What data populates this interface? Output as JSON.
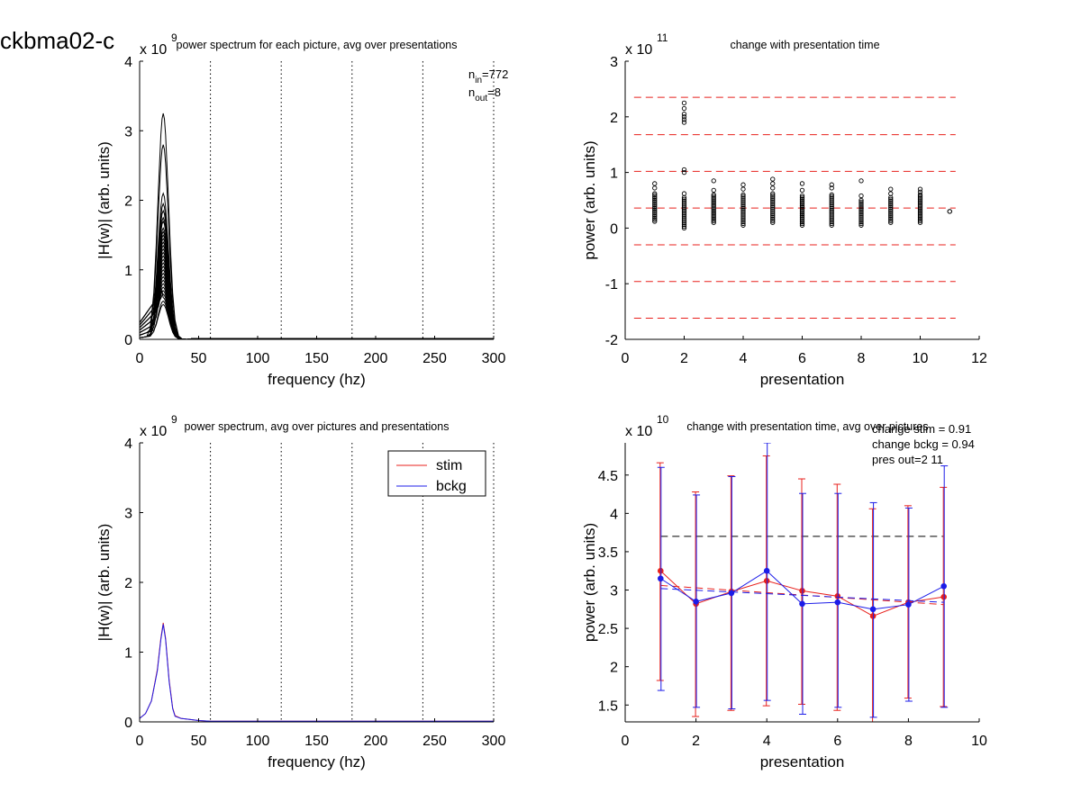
{
  "figure": {
    "title": "ckbma02-c"
  },
  "chart_data": [
    {
      "id": "tl",
      "type": "line",
      "title": "power spectrum for each picture, avg over presentations",
      "xlabel": "frequency (hz)",
      "ylabel": "|H(w)| (arb. units)",
      "y_exponent": "x 10",
      "y_exponent_power": "9",
      "xlim": [
        0,
        300
      ],
      "ylim": [
        0,
        4
      ],
      "xticks": [
        0,
        50,
        100,
        150,
        200,
        250,
        300
      ],
      "yticks": [
        0,
        1,
        2,
        3,
        4
      ],
      "vlines": [
        60,
        120,
        180,
        240,
        300
      ],
      "annotation": {
        "n_in_label": "n",
        "n_in_sub": "in",
        "n_in_value": "=772",
        "n_out_label": "n",
        "n_out_sub": "out",
        "n_out_value": "=8"
      },
      "series_color": "#000000",
      "series_peaks": [
        3.25,
        2.8,
        2.1,
        1.95,
        1.85,
        1.75,
        1.7,
        1.6,
        1.55,
        1.5,
        1.45,
        1.4,
        1.35,
        1.3,
        1.25,
        1.2,
        1.15,
        1.1,
        1.05,
        1.0,
        0.95,
        0.9,
        0.85,
        0.8,
        0.75,
        0.7,
        0.65,
        0.6,
        0.55,
        0.5
      ],
      "peak_freq": 20
    },
    {
      "id": "tr",
      "type": "scatter",
      "title": "change with presentation time",
      "xlabel": "presentation",
      "ylabel": "power (arb. units)",
      "y_exponent": "x 10",
      "y_exponent_power": "11",
      "xlim": [
        0,
        12
      ],
      "ylim": [
        -2,
        3
      ],
      "xticks": [
        0,
        2,
        4,
        6,
        8,
        10,
        12
      ],
      "yticks": [
        -2,
        -1,
        0,
        1,
        2,
        3
      ],
      "hlines": [
        2.35,
        1.68,
        1.02,
        0.36,
        -0.3,
        -0.96,
        -1.62
      ],
      "hline_color": "#e8201c",
      "points": [
        {
          "x": 1,
          "min": 0.12,
          "max": 0.62,
          "extras": [
            0.72,
            0.8
          ]
        },
        {
          "x": 2,
          "min": 0.0,
          "max": 0.55,
          "extras": [
            0.62,
            1.0,
            1.05,
            1.9,
            1.95,
            2.0,
            2.05,
            2.15,
            2.25
          ]
        },
        {
          "x": 3,
          "min": 0.1,
          "max": 0.6,
          "extras": [
            0.68,
            0.85
          ]
        },
        {
          "x": 4,
          "min": 0.05,
          "max": 0.6,
          "extras": [
            0.7,
            0.78
          ]
        },
        {
          "x": 5,
          "min": 0.1,
          "max": 0.62,
          "extras": [
            0.72,
            0.8,
            0.88
          ]
        },
        {
          "x": 6,
          "min": 0.05,
          "max": 0.58,
          "extras": [
            0.68,
            0.8
          ]
        },
        {
          "x": 7,
          "min": 0.05,
          "max": 0.6,
          "extras": [
            0.72,
            0.78
          ]
        },
        {
          "x": 8,
          "min": 0.05,
          "max": 0.5,
          "extras": [
            0.58,
            0.85
          ]
        },
        {
          "x": 9,
          "min": 0.1,
          "max": 0.55,
          "extras": [
            0.62,
            0.7
          ]
        },
        {
          "x": 10,
          "min": 0.1,
          "max": 0.6,
          "extras": [
            0.65,
            0.7
          ]
        },
        {
          "x": 11,
          "min": 0.3,
          "max": 0.3,
          "extras": []
        }
      ]
    },
    {
      "id": "bl",
      "type": "line",
      "title": "power spectrum, avg over pictures and presentations",
      "xlabel": "frequency (hz)",
      "ylabel": "|H(w)| (arb. units)",
      "y_exponent": "x 10",
      "y_exponent_power": "9",
      "xlim": [
        0,
        300
      ],
      "ylim": [
        0,
        4
      ],
      "xticks": [
        0,
        50,
        100,
        150,
        200,
        250,
        300
      ],
      "yticks": [
        0,
        1,
        2,
        3,
        4
      ],
      "vlines": [
        60,
        120,
        180,
        240,
        300
      ],
      "legend_position": "top-right",
      "series": [
        {
          "name": "stim",
          "color": "#e8201c",
          "x": [
            0,
            5,
            10,
            15,
            18,
            20,
            22,
            25,
            28,
            30,
            35,
            40,
            50,
            60,
            100,
            200,
            300
          ],
          "y": [
            0.05,
            0.12,
            0.3,
            0.75,
            1.2,
            1.42,
            1.2,
            0.6,
            0.2,
            0.09,
            0.05,
            0.04,
            0.02,
            0.01,
            0.01,
            0.01,
            0.01
          ]
        },
        {
          "name": "bckg",
          "color": "#1c1ce8",
          "x": [
            0,
            5,
            10,
            15,
            18,
            20,
            22,
            25,
            28,
            30,
            35,
            40,
            50,
            60,
            100,
            200,
            300
          ],
          "y": [
            0.05,
            0.12,
            0.3,
            0.73,
            1.18,
            1.4,
            1.18,
            0.58,
            0.19,
            0.08,
            0.05,
            0.04,
            0.02,
            0.01,
            0.01,
            0.01,
            0.01
          ]
        }
      ]
    },
    {
      "id": "br",
      "type": "line",
      "title": "change with presentation time, avg over pictures",
      "xlabel": "presentation",
      "ylabel": "power (arb. units)",
      "y_exponent": "x 10",
      "y_exponent_power": "10",
      "xlim": [
        0,
        10
      ],
      "ylim": [
        1.28,
        4.92
      ],
      "xticks": [
        0,
        2,
        4,
        6,
        8,
        10
      ],
      "yticks": [
        1.5,
        2,
        2.5,
        3,
        3.5,
        4,
        4.5
      ],
      "ytick_labels": [
        "1.5",
        "2",
        "2.5",
        "3",
        "3.5",
        "4",
        "4.5"
      ],
      "annotations": [
        "change stim = 0.91",
        "change bckg = 0.94",
        "pres out=2 11"
      ],
      "hline": {
        "y": 3.7,
        "xmin": 1,
        "xmax": 9,
        "color": "#000000"
      },
      "series": [
        {
          "name": "stim",
          "color": "#e8201c",
          "x": [
            1,
            2,
            3,
            4,
            5,
            6,
            7,
            8,
            9
          ],
          "y": [
            3.25,
            2.82,
            2.98,
            3.12,
            2.99,
            2.92,
            2.66,
            2.84,
            2.91
          ],
          "err_low": [
            1.82,
            1.35,
            1.43,
            1.49,
            1.51,
            1.43,
            1.28,
            1.59,
            1.48
          ],
          "err_high": [
            4.66,
            4.28,
            4.49,
            4.75,
            4.45,
            4.38,
            4.06,
            4.1,
            4.34
          ],
          "trend": [
            3.06,
            2.81
          ]
        },
        {
          "name": "bckg",
          "color": "#1c1ce8",
          "x": [
            1,
            2,
            3,
            4,
            5,
            6,
            7,
            8,
            9
          ],
          "y": [
            3.15,
            2.85,
            2.96,
            3.25,
            2.82,
            2.84,
            2.75,
            2.81,
            3.05
          ],
          "err_low": [
            1.69,
            1.47,
            1.45,
            1.56,
            1.38,
            1.47,
            1.34,
            1.55,
            1.47
          ],
          "err_high": [
            4.6,
            4.24,
            4.48,
            4.92,
            4.26,
            4.26,
            4.14,
            4.07,
            4.62
          ],
          "trend": [
            3.02,
            2.84
          ]
        }
      ]
    }
  ]
}
